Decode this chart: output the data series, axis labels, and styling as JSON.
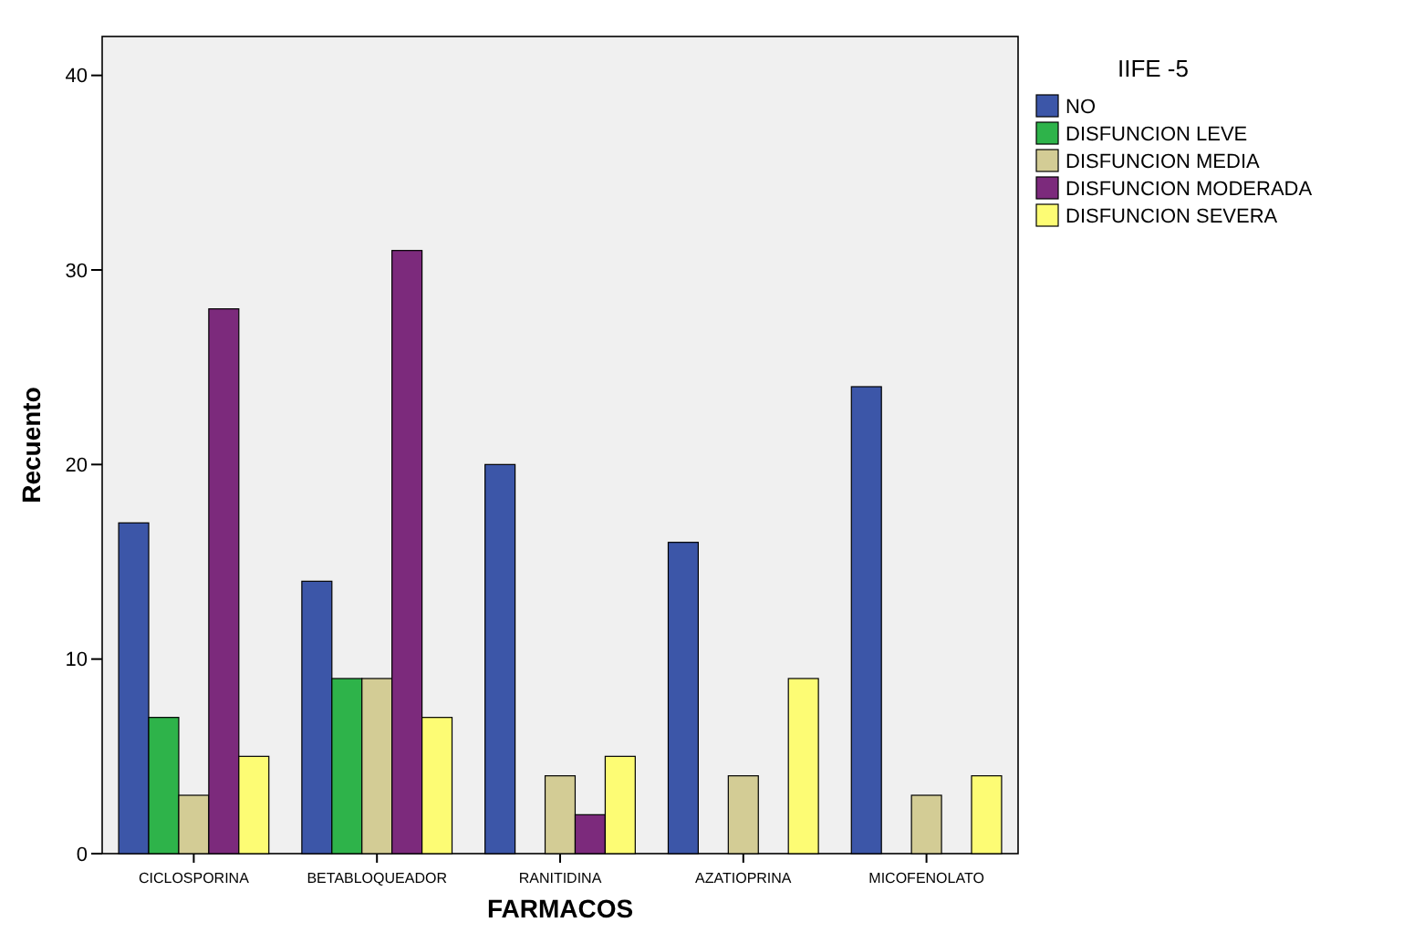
{
  "chart_data": {
    "type": "bar",
    "xlabel": "FARMACOS",
    "ylabel": "Recuento",
    "legend_title": "IIFE -5",
    "legend": "right",
    "grid": false,
    "categories": [
      "CICLOSPORINA",
      "BETABLOQUEADOR",
      "RANITIDINA",
      "AZATIOPRINA",
      "MICOFENOLATO"
    ],
    "ylim": [
      0,
      42
    ],
    "yticks": [
      0,
      10,
      20,
      30,
      40
    ],
    "series": [
      {
        "name": "NO",
        "color": "#3c56a8",
        "values": [
          17,
          14,
          20,
          16,
          24
        ]
      },
      {
        "name": "DISFUNCION LEVE",
        "color": "#2eb34a",
        "values": [
          7,
          9,
          null,
          null,
          null
        ]
      },
      {
        "name": "DISFUNCION MEDIA",
        "color": "#d3cc95",
        "values": [
          3,
          9,
          4,
          4,
          3
        ]
      },
      {
        "name": "DISFUNCION MODERADA",
        "color": "#7c2a7c",
        "values": [
          28,
          31,
          2,
          null,
          null
        ]
      },
      {
        "name": "DISFUNCION SEVERA",
        "color": "#fdfc74",
        "values": [
          5,
          7,
          5,
          9,
          4
        ]
      }
    ]
  }
}
